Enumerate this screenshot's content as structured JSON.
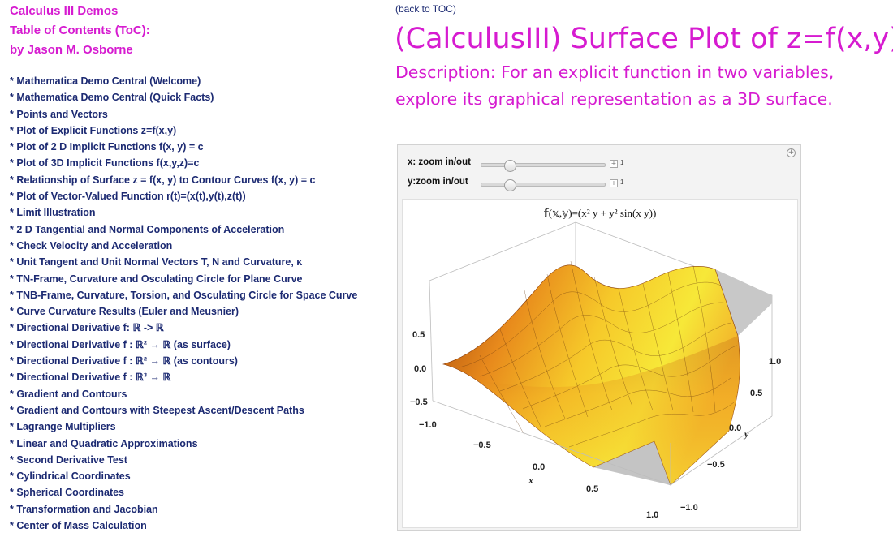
{
  "header": {
    "line1": "Calculus III Demos",
    "line2": "Table of Contents (ToC):",
    "line3": "by Jason M. Osborne"
  },
  "toc": [
    "* Mathematica Demo Central (Welcome)",
    "* Mathematica Demo Central (Quick Facts)",
    "* Points and Vectors",
    "* Plot of Explicit Functions z=f(x,y)",
    "* Plot of 2 D Implicit Functions f(x, y) = c",
    "* Plot of 3D Implicit Functions f(x,y,z)=c",
    "* Relationship of Surface z = f(x, y) to Contour Curves f(x, y) = c",
    "* Plot of Vector-Valued Function r(t)=(x(t),y(t),z(t))",
    "* Limit Illustration",
    "* 2 D Tangential and Normal Components of Acceleration",
    "* Check Velocity and Acceleration",
    "* Unit Tangent and Unit Normal Vectors T, N and Curvature, κ",
    "* TN-Frame, Curvature and Osculating Circle for Plane Curve",
    "* TNB-Frame, Curvature, Torsion, and Osculating Circle for Space Curve",
    "* Curve Curvature Results (Euler and Meusnier)",
    "* Directional Derivative f: ℝ -> ℝ",
    "* Directional Derivative f : ℝ² → ℝ (as surface)",
    "*  Directional Derivative f  : ℝ²  → ℝ (as contours)",
    "* Directional Derivative f  : ℝ³  → ℝ",
    "* Gradient and Contours",
    "* Gradient and Contours with Steepest Ascent/Descent Paths",
    "* Lagrange Multipliers",
    "* Linear and Quadratic Approximations",
    "* Second Derivative Test",
    "* Cylindrical Coordinates",
    "* Spherical Coordinates",
    "* Transformation and Jacobian",
    "* Center of Mass Calculation"
  ],
  "main": {
    "back_link": "(back to TOC)",
    "title": "(CalculusIII) Surface Plot of z=f(x,y)",
    "description": "Description: For an explicit function in two variables, explore its graphical representation as a 3D surface."
  },
  "controls": [
    {
      "label": "x: zoom in/out",
      "value": "1",
      "fraction": 0.2
    },
    {
      "label": "y:zoom in/out",
      "value": "1",
      "fraction": 0.2
    }
  ],
  "plot": {
    "title": "𝕗(𝕩,𝕪)=(x² y + y² sin(x y))",
    "x_label": "x",
    "y_label": "y",
    "z_ticks": [
      "0.5",
      "0.0",
      "−0.5",
      "−1.0"
    ],
    "x_ticks": [
      "−0.5",
      "0.0",
      "0.5",
      "1.0"
    ],
    "y_ticks": [
      "1.0",
      "0.5",
      "0.0",
      "−0.5",
      "−1.0"
    ]
  },
  "colors": {
    "header": "#d61bd0",
    "toc_link": "#1c2a72",
    "surface_high": "#f7e838",
    "surface_low": "#a8480c"
  }
}
